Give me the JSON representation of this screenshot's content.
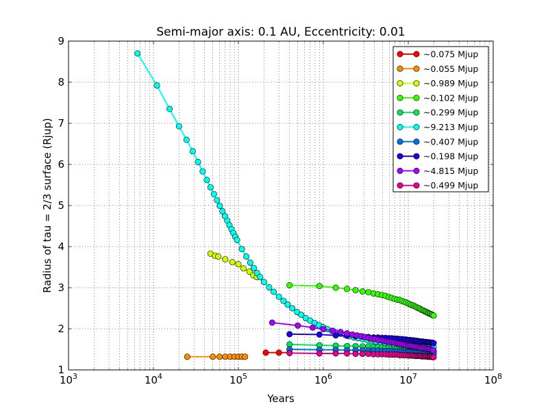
{
  "chart_data": {
    "type": "line",
    "title": "Semi-major axis: 0.1 AU, Eccentricity: 0.01",
    "xlabel": "Years",
    "ylabel": "Radius of tau = 2/3 surface (Rjup)",
    "xscale": "log",
    "xlim": [
      1000,
      100000000
    ],
    "ylim": [
      1,
      9
    ],
    "x_ticks": [
      {
        "value": 1000,
        "base": "10",
        "exp": "3"
      },
      {
        "value": 10000,
        "base": "10",
        "exp": "4"
      },
      {
        "value": 100000,
        "base": "10",
        "exp": "5"
      },
      {
        "value": 1000000,
        "base": "10",
        "exp": "6"
      },
      {
        "value": 10000000,
        "base": "10",
        "exp": "7"
      },
      {
        "value": 100000000,
        "base": "10",
        "exp": "8"
      }
    ],
    "y_ticks": [
      "1",
      "2",
      "3",
      "4",
      "5",
      "6",
      "7",
      "8",
      "9"
    ],
    "grid": true,
    "legend_position": "top-right",
    "series": [
      {
        "name": "~0.075 Mjup",
        "color": "#ff0000",
        "x": [
          210000,
          300000,
          400000
        ],
        "y": [
          1.42,
          1.42,
          1.42
        ]
      },
      {
        "name": "~0.055 Mjup",
        "color": "#ff8c00",
        "x": [
          25000,
          50000,
          60000,
          70000,
          80000,
          90000,
          100000,
          110000,
          120000
        ],
        "y": [
          1.32,
          1.32,
          1.32,
          1.32,
          1.32,
          1.32,
          1.32,
          1.32,
          1.32
        ]
      },
      {
        "name": "~0.989 Mjup",
        "color": "#ccff00",
        "x": [
          47000,
          53000,
          58000,
          70000,
          85000,
          100000,
          115000,
          135000,
          150000,
          165000
        ],
        "y": [
          3.83,
          3.78,
          3.76,
          3.69,
          3.62,
          3.57,
          3.47,
          3.39,
          3.3,
          3.26
        ],
        "markers": [
          3.83,
          3.78,
          3.76,
          3.69,
          3.62,
          3.57,
          3.47,
          3.39,
          3.3,
          3.26
        ]
      },
      {
        "name": "~0.102 Mjup",
        "color": "#33ff00",
        "x": [
          400000,
          900000,
          1400000,
          1900000,
          2400000,
          2900000,
          3400000,
          3900000,
          4400000,
          4900000,
          5400000,
          5900000,
          6400000,
          6900000,
          7400000,
          7900000,
          8400000,
          8900000,
          9400000,
          9900000,
          10400000,
          10900000,
          11400000,
          11900000,
          12400000,
          12900000,
          13400000,
          13900000,
          14400000,
          14900000,
          15400000,
          15900000,
          16400000,
          16900000,
          17400000,
          17900000,
          18400000,
          18900000,
          19400000,
          19900000
        ],
        "y": [
          3.06,
          3.04,
          3.0,
          2.97,
          2.94,
          2.91,
          2.89,
          2.86,
          2.84,
          2.82,
          2.8,
          2.77,
          2.75,
          2.73,
          2.71,
          2.7,
          2.68,
          2.66,
          2.64,
          2.62,
          2.6,
          2.58,
          2.57,
          2.55,
          2.53,
          2.51,
          2.5,
          2.48,
          2.46,
          2.45,
          2.43,
          2.42,
          2.41,
          2.39,
          2.38,
          2.37,
          2.36,
          2.35,
          2.33,
          2.32
        ]
      },
      {
        "name": "~0.299 Mjup",
        "color": "#00e65a",
        "x": [
          400000,
          900000,
          1400000,
          1900000,
          2400000,
          2900000,
          3400000,
          3900000,
          4400000,
          4900000,
          5400000,
          5900000,
          6400000,
          6900000,
          7400000,
          7900000,
          8400000,
          8900000,
          9400000,
          9900000,
          10400000,
          10900000,
          11400000,
          11900000,
          12400000,
          12900000,
          13400000,
          13900000,
          14400000,
          14900000,
          15400000,
          15900000,
          16400000,
          16900000,
          17400000,
          17900000,
          18400000,
          18900000,
          19400000,
          19900000
        ],
        "y": [
          1.62,
          1.6,
          1.59,
          1.58,
          1.58,
          1.57,
          1.57,
          1.56,
          1.56,
          1.55,
          1.55,
          1.55,
          1.54,
          1.54,
          1.54,
          1.53,
          1.53,
          1.53,
          1.52,
          1.52,
          1.52,
          1.51,
          1.51,
          1.51,
          1.5,
          1.5,
          1.5,
          1.49,
          1.49,
          1.49,
          1.48,
          1.48,
          1.48,
          1.47,
          1.47,
          1.47,
          1.46,
          1.46,
          1.46,
          1.45
        ]
      },
      {
        "name": "~9.213 Mjup",
        "color": "#00ffee",
        "x": [
          6500,
          11000,
          15500,
          20000,
          24500,
          29000,
          33500,
          38000,
          42500,
          47000,
          51500,
          56000,
          60500,
          65000,
          69500,
          74000,
          78500,
          83000,
          87500,
          92000,
          96500,
          110000,
          124000,
          138000,
          152000,
          166000,
          180000,
          200000,
          230000,
          260000,
          300000,
          340000,
          380000,
          430000,
          490000,
          550000,
          620000,
          700000,
          790000,
          890000,
          1000000,
          1120000,
          1260000,
          1420000,
          1600000,
          1800000,
          2030000,
          2290000,
          2580000,
          2910000,
          3280000,
          3700000,
          4170000,
          4700000,
          5300000,
          5980000,
          6740000,
          7600000,
          8570000,
          9660000,
          10890000,
          12280000,
          13840000,
          15610000,
          17600000,
          19840000
        ],
        "y": [
          8.7,
          7.92,
          7.35,
          6.93,
          6.6,
          6.32,
          6.06,
          5.83,
          5.62,
          5.44,
          5.28,
          5.13,
          4.99,
          4.86,
          4.74,
          4.63,
          4.52,
          4.42,
          4.33,
          4.24,
          4.16,
          3.94,
          3.76,
          3.61,
          3.48,
          3.36,
          3.26,
          3.14,
          3.01,
          2.9,
          2.78,
          2.68,
          2.59,
          2.5,
          2.41,
          2.34,
          2.26,
          2.2,
          2.14,
          2.09,
          2.04,
          1.99,
          1.95,
          1.91,
          1.88,
          1.85,
          1.82,
          1.79,
          1.77,
          1.75,
          1.73,
          1.71,
          1.69,
          1.68,
          1.66,
          1.65,
          1.63,
          1.62,
          1.61,
          1.6,
          1.59,
          1.58,
          1.57,
          1.56,
          1.55,
          1.54
        ]
      },
      {
        "name": "~0.407 Mjup",
        "color": "#0070e6",
        "x": [
          400000,
          900000,
          1400000,
          1900000,
          2400000,
          2900000,
          3400000,
          3900000,
          4400000,
          4900000,
          5400000,
          5900000,
          6400000,
          6900000,
          7400000,
          7900000,
          8400000,
          8900000,
          9400000,
          9900000,
          10400000,
          10900000,
          11400000,
          11900000,
          12400000,
          12900000,
          13400000,
          13900000,
          14400000,
          14900000,
          15400000,
          15900000,
          16400000,
          16900000,
          17400000,
          17900000,
          18400000,
          18900000,
          19400000,
          19900000
        ],
        "y": [
          1.5,
          1.49,
          1.49,
          1.48,
          1.48,
          1.48,
          1.47,
          1.47,
          1.47,
          1.46,
          1.46,
          1.46,
          1.46,
          1.45,
          1.45,
          1.45,
          1.45,
          1.44,
          1.44,
          1.44,
          1.44,
          1.43,
          1.43,
          1.43,
          1.43,
          1.42,
          1.42,
          1.42,
          1.42,
          1.41,
          1.41,
          1.41,
          1.41,
          1.4,
          1.4,
          1.4,
          1.4,
          1.39,
          1.39,
          1.39
        ]
      },
      {
        "name": "~0.198 Mjup",
        "color": "#1a00e6",
        "x": [
          400000,
          900000,
          1400000,
          1900000,
          2400000,
          2900000,
          3400000,
          3900000,
          4400000,
          4900000,
          5400000,
          5900000,
          6400000,
          6900000,
          7400000,
          7900000,
          8400000,
          8900000,
          9400000,
          9900000,
          10400000,
          10900000,
          11400000,
          11900000,
          12400000,
          12900000,
          13400000,
          13900000,
          14400000,
          14900000,
          15400000,
          15900000,
          16400000,
          16900000,
          17400000,
          17900000,
          18400000,
          18900000,
          19400000,
          19900000
        ],
        "y": [
          1.87,
          1.86,
          1.84,
          1.83,
          1.82,
          1.81,
          1.8,
          1.79,
          1.79,
          1.78,
          1.78,
          1.77,
          1.77,
          1.76,
          1.76,
          1.75,
          1.75,
          1.74,
          1.74,
          1.73,
          1.73,
          1.72,
          1.72,
          1.71,
          1.71,
          1.7,
          1.7,
          1.69,
          1.69,
          1.69,
          1.68,
          1.68,
          1.68,
          1.67,
          1.67,
          1.67,
          1.66,
          1.66,
          1.66,
          1.65
        ]
      },
      {
        "name": "~4.815 Mjup",
        "color": "#a600ff",
        "x": [
          250000,
          500000,
          750000,
          1000000,
          1300000,
          1600000,
          1900000,
          2200000,
          2500000,
          2800000,
          3100000,
          3400000,
          3700000,
          4000000,
          4400000,
          4800000,
          5200000,
          5600000,
          6000000,
          6400000,
          6800000,
          7200000,
          7600000,
          8000000,
          8500000,
          9000000,
          9500000,
          10000000,
          10500000,
          11000000,
          11600000,
          12200000,
          12800000,
          13400000,
          14000000,
          14700000,
          15400000,
          16100000,
          16800000,
          17500000,
          18200000,
          18900000,
          19600000
        ],
        "y": [
          2.15,
          2.08,
          2.03,
          1.99,
          1.95,
          1.92,
          1.89,
          1.86,
          1.84,
          1.82,
          1.8,
          1.78,
          1.76,
          1.75,
          1.73,
          1.72,
          1.7,
          1.69,
          1.68,
          1.67,
          1.66,
          1.65,
          1.64,
          1.63,
          1.62,
          1.61,
          1.6,
          1.59,
          1.59,
          1.58,
          1.57,
          1.56,
          1.56,
          1.55,
          1.54,
          1.53,
          1.53,
          1.52,
          1.51,
          1.51,
          1.5,
          1.49,
          1.48
        ]
      },
      {
        "name": "~0.499 Mjup",
        "color": "#e6008c",
        "x": [
          400000,
          900000,
          1400000,
          1900000,
          2400000,
          2900000,
          3400000,
          3900000,
          4400000,
          4900000,
          5400000,
          5900000,
          6400000,
          6900000,
          7400000,
          7900000,
          8400000,
          8900000,
          9400000,
          9900000,
          10400000,
          10900000,
          11400000,
          11900000,
          12400000,
          12900000,
          13400000,
          13900000,
          14400000,
          14900000,
          15400000,
          15900000,
          16400000,
          16900000,
          17400000,
          17900000,
          18400000,
          18900000,
          19400000,
          19900000
        ],
        "y": [
          1.41,
          1.4,
          1.4,
          1.4,
          1.39,
          1.39,
          1.39,
          1.38,
          1.38,
          1.38,
          1.38,
          1.37,
          1.37,
          1.37,
          1.37,
          1.36,
          1.36,
          1.36,
          1.36,
          1.35,
          1.35,
          1.35,
          1.35,
          1.34,
          1.34,
          1.34,
          1.34,
          1.34,
          1.33,
          1.33,
          1.33,
          1.33,
          1.33,
          1.32,
          1.32,
          1.32,
          1.32,
          1.32,
          1.31,
          1.31
        ]
      }
    ]
  }
}
